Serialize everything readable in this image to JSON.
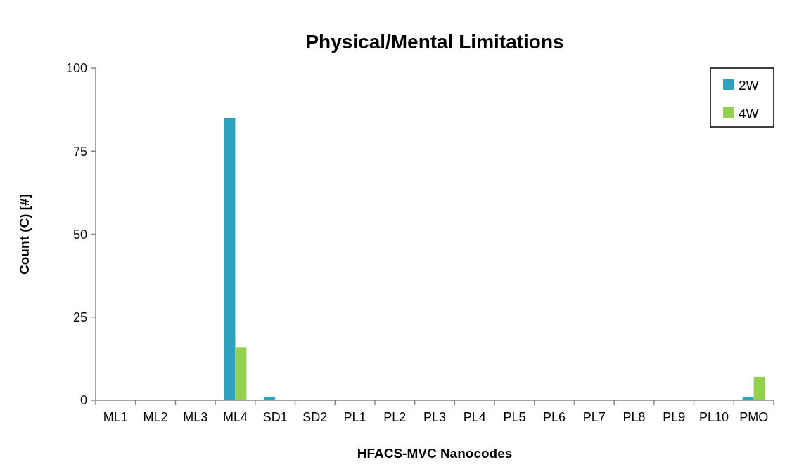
{
  "chart_data": {
    "type": "bar",
    "title": "Physical/Mental Limitations",
    "xlabel": "HFACS-MVC Nanocodes",
    "ylabel": "Count (C) [#]",
    "categories": [
      "ML1",
      "ML2",
      "ML3",
      "ML4",
      "SD1",
      "SD2",
      "PL1",
      "PL2",
      "PL3",
      "PL4",
      "PL5",
      "PL6",
      "PL7",
      "PL8",
      "PL9",
      "PL10",
      "PMO"
    ],
    "series": [
      {
        "name": "2W",
        "color": "#2ea1bf",
        "values": [
          0,
          0,
          0,
          85,
          1,
          0,
          0,
          0,
          0,
          0,
          0,
          0,
          0,
          0,
          0,
          0,
          1
        ]
      },
      {
        "name": "4W",
        "color": "#92d050",
        "values": [
          0,
          0,
          0,
          16,
          0,
          0,
          0,
          0,
          0,
          0,
          0,
          0,
          0,
          0,
          0,
          0,
          7
        ]
      }
    ],
    "ylim": [
      0,
      100
    ],
    "yticks": [
      0,
      25,
      50,
      75,
      100
    ],
    "grid": false,
    "legend": "top right"
  }
}
